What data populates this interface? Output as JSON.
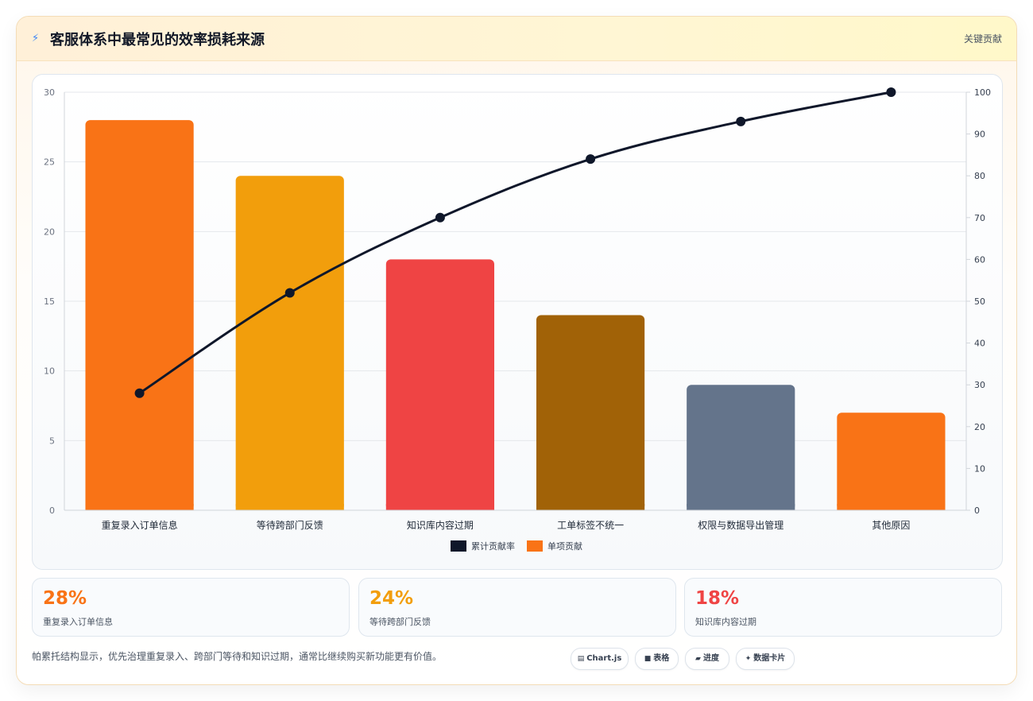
{
  "header": {
    "icon": "bolt-icon",
    "title": "客服体系中最常见的效率损耗来源",
    "tag": "关键贡献"
  },
  "chart_data": {
    "type": "bar",
    "categories": [
      "重复录入订单信息",
      "等待跨部门反馈",
      "知识库内容过期",
      "工单标签不统一",
      "权限与数据导出管理",
      "其他原因"
    ],
    "series": [
      {
        "name": "单项贡献",
        "type": "bar",
        "axis": "left",
        "values": [
          28,
          24,
          18,
          14,
          9,
          7
        ],
        "colors": [
          "#f97316",
          "#f29e0c",
          "#ef4444",
          "#a16207",
          "#64748b",
          "#f97316"
        ]
      },
      {
        "name": "累计贡献率",
        "type": "line",
        "axis": "right",
        "values": [
          28,
          52,
          70,
          84,
          93,
          100
        ],
        "color": "#0f172a"
      }
    ],
    "y_left": {
      "min": 0,
      "max": 30,
      "ticks": [
        0,
        5,
        10,
        15,
        20,
        25,
        30
      ]
    },
    "y_right": {
      "min": 0,
      "max": 100,
      "ticks": [
        0,
        10,
        20,
        30,
        40,
        50,
        60,
        70,
        80,
        90,
        100
      ]
    },
    "legend": [
      {
        "label": "累计贡献率",
        "color": "#0f172a"
      },
      {
        "label": "单项贡献",
        "color": "#f97316"
      }
    ],
    "legend_position": "bottom",
    "grid": true
  },
  "stats": [
    {
      "value": "28%",
      "label": "重复录入订单信息",
      "color": "#f97316"
    },
    {
      "value": "24%",
      "label": "等待跨部门反馈",
      "color": "#f29e0c"
    },
    {
      "value": "18%",
      "label": "知识库内容过期",
      "color": "#ef4444"
    }
  ],
  "footer": {
    "note": "帕累托结构显示，优先治理重复录入、跨部门等待和知识过期，通常比继续购买新功能更有价值。",
    "pills": [
      {
        "label": "Chart.js",
        "icon": "chart-icon"
      },
      {
        "label": "表格",
        "icon": "table-icon"
      },
      {
        "label": "进度",
        "icon": "progress-icon"
      },
      {
        "label": "数据卡片",
        "icon": "sparkle-icon"
      }
    ]
  }
}
